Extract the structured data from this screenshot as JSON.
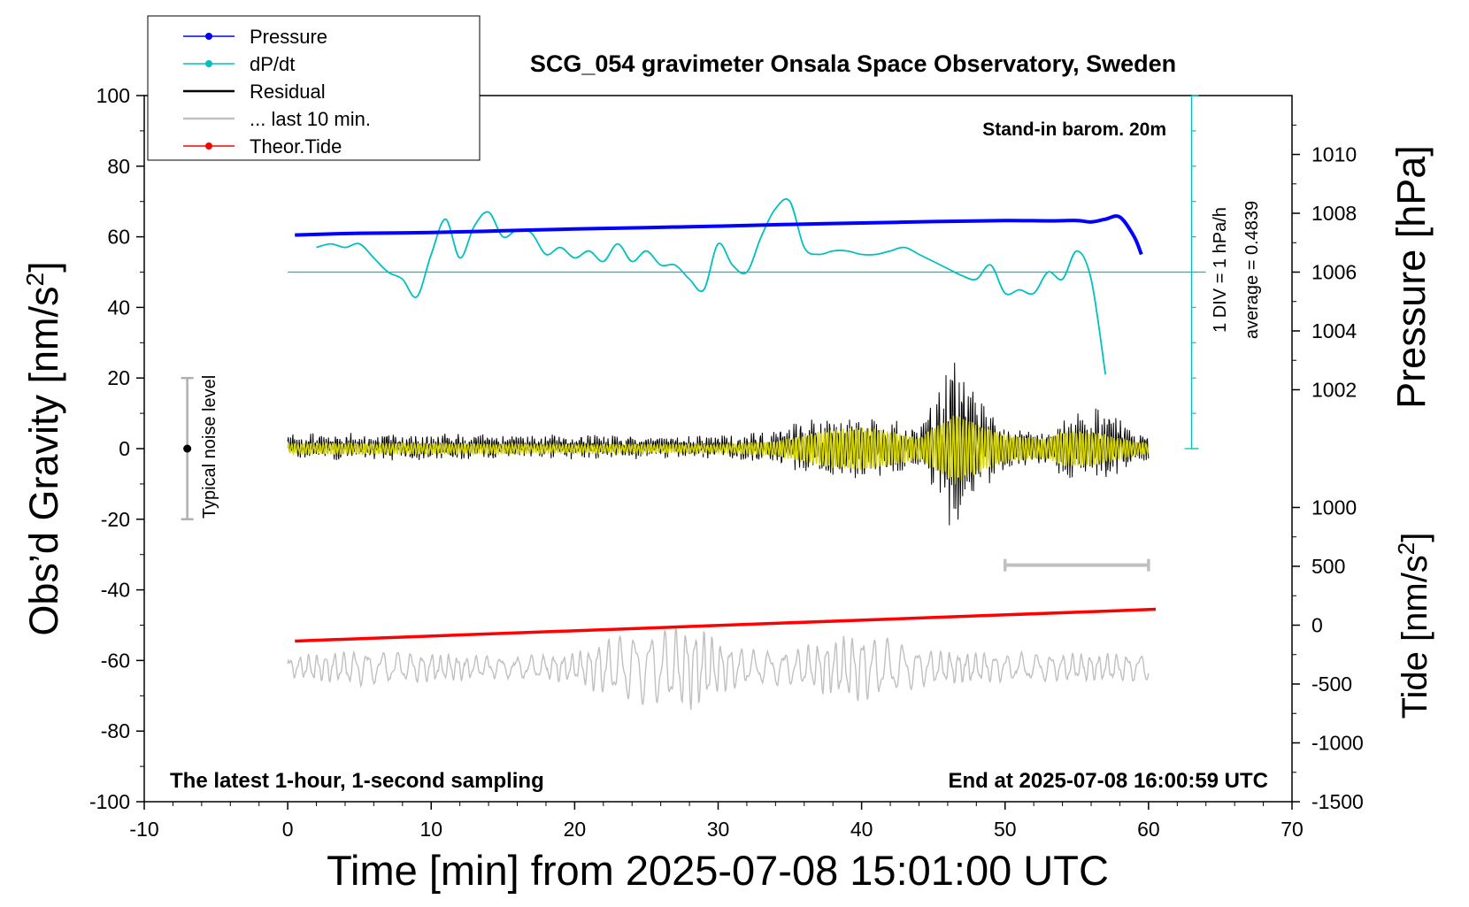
{
  "chart_data": {
    "type": "line",
    "title": "SCG_054 gravimeter Onsala Space Observatory, Sweden",
    "xlabel": "Time [min] from 2025-07-08 15:01:00 UTC",
    "ylabel_left_main": "Obs’d Gravity [nm/s",
    "ylabel_left_sup": "2",
    "ylabel_left_tail": "]",
    "ylabel_right_pressure": "Pressure [hPa]",
    "ylabel_right_tide_main": "Tide [nm/s",
    "ylabel_right_tide_sup": "2",
    "ylabel_right_tide_tail": "]",
    "xlim": [
      -10,
      70
    ],
    "ylim": [
      -100,
      100
    ],
    "x_ticks": [
      "-10",
      "0",
      "10",
      "20",
      "30",
      "40",
      "50",
      "60",
      "70"
    ],
    "y_ticks": [
      "100",
      "80",
      "60",
      "40",
      "20",
      "0",
      "-20",
      "-40",
      "-60",
      "-80",
      "-100"
    ],
    "pressure_ticks": [
      "1010",
      "1008",
      "1006",
      "1004",
      "1002"
    ],
    "tide_ticks": [
      "1000",
      "500",
      "0",
      "-500",
      "-1000",
      "-1500"
    ],
    "legend_position": "top-left",
    "legend": [
      {
        "label": "Pressure",
        "color": "#0000ff",
        "marker": true
      },
      {
        "label": "dP/dt",
        "color": "#00c0c0",
        "marker": true
      },
      {
        "label": "Residual",
        "color": "#000000",
        "marker": false
      },
      {
        "label": "... last 10 min.",
        "color": "#c0c0c0",
        "marker": false
      },
      {
        "label": "Theor.Tide",
        "color": "#ff0000",
        "marker": true
      }
    ],
    "annotations": {
      "stand_in": "Stand-in barom. 20m",
      "div_label": "1 DIV = 1 hPa/h",
      "average_label": "average = 0.4839",
      "noise_label": "Typical noise level",
      "latest_label": "The latest 1-hour, 1-second sampling",
      "end_label": "End at 2025-07-08 16:00:59 UTC"
    },
    "noise_bar": {
      "x": -7,
      "y_low": -20,
      "y_high": 20,
      "center": 0
    },
    "dpdt_baseline": 50,
    "scale_bar": {
      "x_start": 50,
      "x_end": 60,
      "y": -33
    },
    "series": [
      {
        "name": "Pressure",
        "color": "#0000ff",
        "x": [
          0.5,
          5,
          10,
          15,
          20,
          25,
          30,
          35,
          40,
          45,
          50,
          53,
          55,
          56,
          57,
          58,
          59,
          59.5
        ],
        "y": [
          60.5,
          61,
          61.2,
          61.7,
          62.2,
          62.6,
          63,
          63.5,
          63.9,
          64.3,
          64.6,
          64.5,
          64.6,
          64.2,
          65,
          65.6,
          60,
          55
        ]
      },
      {
        "name": "dP/dt",
        "color": "#00c0c0",
        "x": [
          2,
          3,
          4,
          5,
          6,
          7,
          8,
          9,
          10,
          11,
          12,
          13,
          14,
          15,
          16,
          17,
          18,
          19,
          20,
          21,
          22,
          23,
          24,
          25,
          26,
          27,
          28,
          29,
          30,
          31,
          32,
          33,
          34,
          35,
          36,
          37,
          38,
          39,
          40,
          41,
          42,
          43,
          44,
          45,
          46,
          47,
          48,
          49,
          50,
          51,
          52,
          53,
          54,
          55,
          56,
          57
        ],
        "y": [
          57,
          58,
          57,
          58,
          54,
          50,
          48,
          43,
          55,
          65,
          54,
          63,
          67,
          60,
          62,
          61,
          55,
          57,
          54,
          56,
          53,
          58,
          53,
          56,
          52,
          52,
          48,
          45,
          58,
          52,
          50,
          60,
          68,
          70,
          57,
          55,
          56,
          56,
          55,
          55,
          56,
          57,
          55,
          53,
          51,
          49,
          48,
          52,
          44,
          45,
          44,
          50,
          48,
          56,
          48,
          21
        ]
      },
      {
        "name": "Residual",
        "color": "#000000",
        "x": [
          0,
          10,
          20,
          30,
          34,
          36,
          38,
          40,
          42,
          44,
          45,
          46,
          46.5,
          47,
          48,
          50,
          52,
          53,
          54,
          55,
          56,
          57,
          58,
          59,
          60
        ],
        "y_amplitude": [
          4,
          4,
          3.5,
          3.5,
          5,
          8,
          9,
          9,
          8,
          6,
          14,
          22,
          30,
          25,
          16,
          7,
          5,
          6,
          9,
          10,
          11,
          12,
          8,
          5,
          4
        ]
      },
      {
        "name": "Residual (filtered)",
        "color": "#d8d800",
        "x": [
          0,
          10,
          20,
          30,
          34,
          36,
          38,
          40,
          42,
          44,
          45,
          46,
          46.5,
          47,
          48,
          50,
          52,
          53,
          54,
          55,
          56,
          57,
          58,
          59,
          60
        ],
        "y_amplitude": [
          1.5,
          1.5,
          1.2,
          1.2,
          2,
          4,
          5.5,
          6,
          5,
          3,
          6,
          8,
          10,
          9,
          7,
          4,
          3,
          3,
          5,
          5,
          5,
          4,
          3,
          2,
          1.5
        ]
      },
      {
        "name": "... last 10 min.",
        "color": "#c0c0c0",
        "x": [
          0,
          5,
          10,
          15,
          20,
          22,
          24,
          26,
          28,
          29,
          30,
          32,
          35,
          38,
          40,
          42,
          45,
          50,
          55,
          60
        ],
        "y_center": -62,
        "y_amplitude": [
          3,
          5,
          4,
          3,
          4,
          8,
          10,
          11,
          12,
          11,
          8,
          5,
          5,
          8,
          10,
          8,
          5,
          4,
          4,
          4
        ]
      },
      {
        "name": "Theor.Tide",
        "color": "#ff0000",
        "x": [
          0.5,
          60.5
        ],
        "y": [
          -54.5,
          -45.5
        ]
      }
    ]
  }
}
